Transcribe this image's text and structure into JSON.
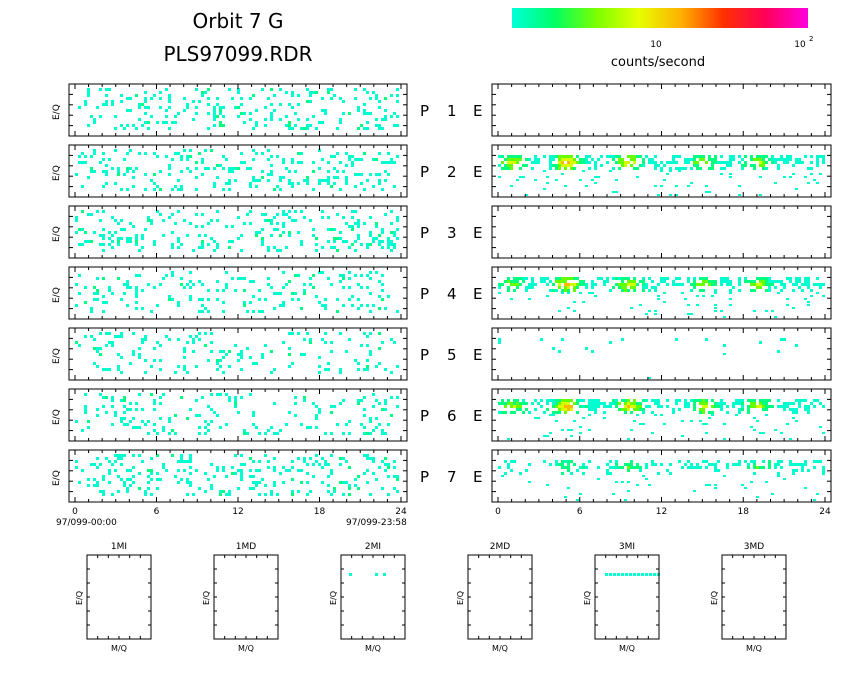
{
  "title": {
    "line1": "Orbit  7  G",
    "line2": "PLS97099.RDR"
  },
  "colorbar": {
    "ticks": [
      "10",
      "10"
    ],
    "tick_exp": "2",
    "label": "counts/second",
    "colors": [
      "#00ffd8",
      "#00ff66",
      "#7cff00",
      "#e6ff00",
      "#ffb000",
      "#ff3000",
      "#ff0058",
      "#ff00e0"
    ]
  },
  "chart_data": {
    "type": "heatmap",
    "description_x": "hours",
    "x_range": [
      0,
      24
    ],
    "x_ticks": [
      0,
      6,
      12,
      18,
      24
    ],
    "x_tick_labels": [
      "0",
      "6",
      "12",
      "18",
      "24"
    ],
    "time_start": "97/099-00:00",
    "time_end": "97/099-23:58",
    "left_ylabel": "E/Q",
    "rows": [
      {
        "left_label": "P",
        "index": "1",
        "right_label": "E"
      },
      {
        "left_label": "P",
        "index": "2",
        "right_label": "E"
      },
      {
        "left_label": "P",
        "index": "3",
        "right_label": "E"
      },
      {
        "left_label": "P",
        "index": "4",
        "right_label": "E"
      },
      {
        "left_label": "P",
        "index": "5",
        "right_label": "E"
      },
      {
        "left_label": "P",
        "index": "6",
        "right_label": "E"
      },
      {
        "left_label": "P",
        "index": "7",
        "right_label": "E"
      }
    ],
    "left_density": [
      0.25,
      0.25,
      0.3,
      0.22,
      0.18,
      0.22,
      0.3
    ],
    "right_activity": [
      {
        "density": 0.0,
        "bursts": []
      },
      {
        "density": 0.6,
        "bursts": [
          [
            1.0,
            0.6
          ],
          [
            5.0,
            0.8
          ],
          [
            9.5,
            0.7
          ],
          [
            15.0,
            0.5
          ],
          [
            19.0,
            0.5
          ]
        ]
      },
      {
        "density": 0.0,
        "bursts": []
      },
      {
        "density": 0.6,
        "bursts": [
          [
            1.0,
            0.4
          ],
          [
            5.0,
            0.8
          ],
          [
            9.5,
            0.6
          ],
          [
            15.0,
            0.5
          ],
          [
            19.0,
            0.5
          ]
        ]
      },
      {
        "density": 0.05,
        "bursts": []
      },
      {
        "density": 0.6,
        "bursts": [
          [
            1.0,
            0.5
          ],
          [
            5.0,
            0.9
          ],
          [
            9.5,
            0.7
          ],
          [
            15.0,
            0.6
          ],
          [
            19.0,
            0.6
          ]
        ]
      },
      {
        "density": 0.35,
        "bursts": [
          [
            5.0,
            0.3
          ],
          [
            9.5,
            0.3
          ],
          [
            19.0,
            0.3
          ]
        ]
      }
    ]
  },
  "bottom_panels": {
    "xlabel": "M/Q",
    "ylabel": "E/Q",
    "items": [
      {
        "name": "1MI",
        "has_data": false
      },
      {
        "name": "1MD",
        "has_data": false
      },
      {
        "name": "2MI",
        "has_data": true,
        "dots": 3
      },
      {
        "name": "2MD",
        "has_data": false
      },
      {
        "name": "3MI",
        "has_data": true,
        "dots": 14
      },
      {
        "name": "3MD",
        "has_data": false
      }
    ]
  }
}
